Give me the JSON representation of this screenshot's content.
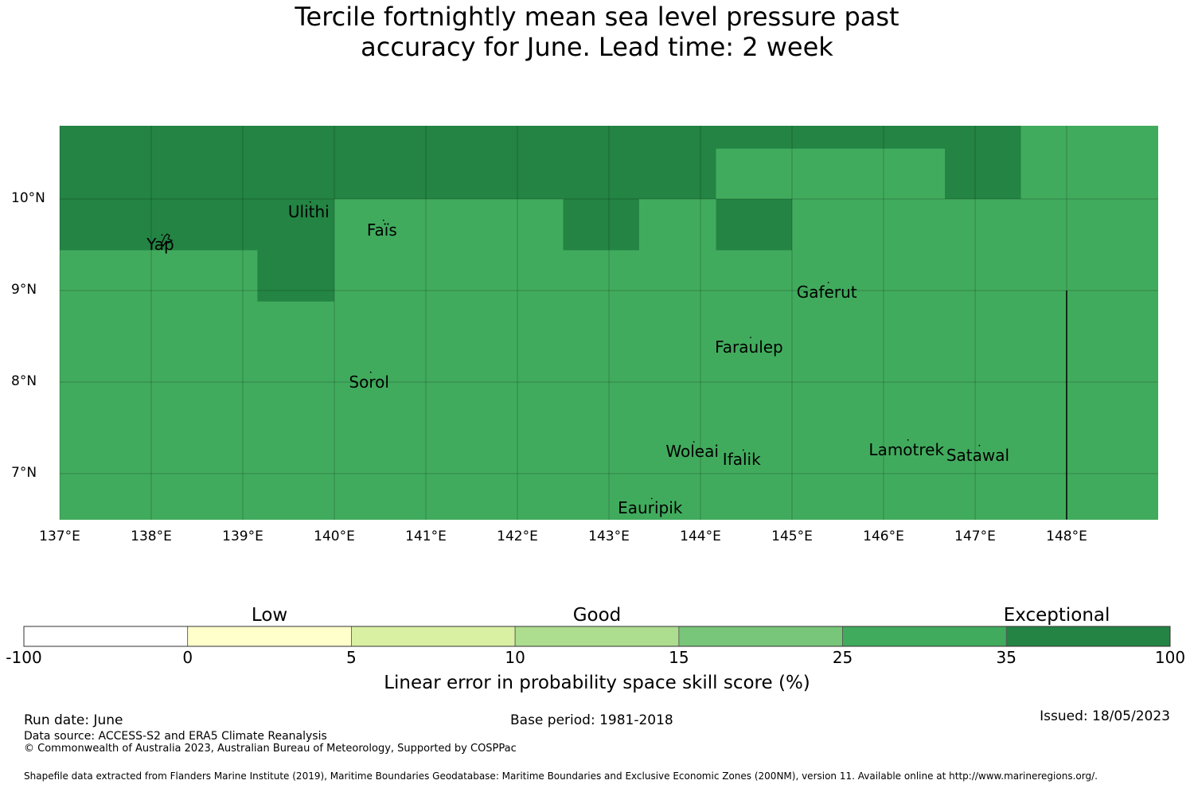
{
  "title": {
    "line1": "Tercile fortnightly mean sea level pressure past",
    "line2": "accuracy for June. Lead time: 2 week"
  },
  "map": {
    "lon_range": [
      137,
      149
    ],
    "lat_range": [
      6.5,
      10.8
    ],
    "lon_ticks": [
      {
        "value": 137,
        "label": "137°E"
      },
      {
        "value": 138,
        "label": "138°E"
      },
      {
        "value": 139,
        "label": "139°E"
      },
      {
        "value": 140,
        "label": "140°E"
      },
      {
        "value": 141,
        "label": "141°E"
      },
      {
        "value": 142,
        "label": "142°E"
      },
      {
        "value": 143,
        "label": "143°E"
      },
      {
        "value": 144,
        "label": "144°E"
      },
      {
        "value": 145,
        "label": "145°E"
      },
      {
        "value": 146,
        "label": "146°E"
      },
      {
        "value": 147,
        "label": "147°E"
      },
      {
        "value": 148,
        "label": "148°E"
      }
    ],
    "lat_ticks": [
      {
        "value": 10,
        "label": "10°N"
      },
      {
        "value": 9,
        "label": "9°N"
      },
      {
        "value": 8,
        "label": "8°N"
      },
      {
        "value": 7,
        "label": "7°N"
      }
    ],
    "colors": {
      "exceptional": "#238443",
      "good_high": "#41ab5d"
    },
    "exceptional_cells": [
      {
        "lon": [
          137,
          147.5
        ],
        "lat": [
          10,
          10.8
        ]
      },
      {
        "lon": [
          137,
          139.16
        ],
        "lat": [
          9.44,
          10
        ]
      },
      {
        "lon": [
          139.16,
          140
        ],
        "lat": [
          8.88,
          10
        ]
      },
      {
        "lon": [
          142.5,
          143.33
        ],
        "lat": [
          9.44,
          10
        ]
      },
      {
        "lon": [
          144.17,
          145
        ],
        "lat": [
          9.44,
          10
        ]
      }
    ],
    "good_high_cells": [
      {
        "lon": [
          144.17,
          146.67
        ],
        "lat": [
          10,
          10.55
        ]
      },
      {
        "lon": [
          147.5,
          149
        ],
        "lat": [
          10,
          10.8
        ]
      }
    ],
    "boundary_line": {
      "lon": 148,
      "lat": [
        6.5,
        9
      ]
    },
    "places": [
      {
        "name": "Yap",
        "lon": 138.1,
        "lat": 9.52
      },
      {
        "name": "Ulithi",
        "lon": 139.72,
        "lat": 9.88
      },
      {
        "name": "Faïs",
        "lon": 140.52,
        "lat": 9.68
      },
      {
        "name": "Gaferut",
        "lon": 145.38,
        "lat": 9.0
      },
      {
        "name": "Faraulep",
        "lon": 144.53,
        "lat": 8.4
      },
      {
        "name": "Sorol",
        "lon": 140.38,
        "lat": 8.02
      },
      {
        "name": "Woleai",
        "lon": 143.91,
        "lat": 7.26
      },
      {
        "name": "Ifalik",
        "lon": 144.45,
        "lat": 7.17
      },
      {
        "name": "Lamotrek",
        "lon": 146.25,
        "lat": 7.28
      },
      {
        "name": "Satawal",
        "lon": 147.03,
        "lat": 7.22
      },
      {
        "name": "Eauripik",
        "lon": 143.45,
        "lat": 6.64
      }
    ]
  },
  "colorbar": {
    "categories": [
      {
        "label": "Low",
        "value": 2.5
      },
      {
        "label": "Good",
        "value": 12.5
      },
      {
        "label": "Exceptional",
        "value": 55
      }
    ],
    "bins": [
      {
        "from": -100,
        "to": 0,
        "color": "#ffffff"
      },
      {
        "from": 0,
        "to": 5,
        "color": "#ffffcc"
      },
      {
        "from": 5,
        "to": 10,
        "color": "#d9f0a3"
      },
      {
        "from": 10,
        "to": 15,
        "color": "#addd8e"
      },
      {
        "from": 15,
        "to": 25,
        "color": "#78c679"
      },
      {
        "from": 25,
        "to": 35,
        "color": "#41ab5d"
      },
      {
        "from": 35,
        "to": 100,
        "color": "#238443"
      }
    ],
    "tick_labels": [
      "-100",
      "0",
      "5",
      "10",
      "15",
      "25",
      "35",
      "100"
    ],
    "title": "Linear error in probability space skill score (%)"
  },
  "footer": {
    "run_date": "Run date: June",
    "base_period": "Base period: 1981-2018",
    "issued": "Issued: 18/05/2023",
    "data_source": "Data source: ACCESS-S2 and ERA5 Climate Reanalysis",
    "copyright": "© Commonwealth of Australia 2023, Australian Bureau of Meteorology, Supported by COSPPac",
    "shapefile": "Shapefile data extracted from Flanders Marine Institute (2019), Maritime Boundaries Geodatabase: Maritime Boundaries and Exclusive Economic Zones (200NM), version 11. Available online at http://www.marineregions.org/."
  }
}
